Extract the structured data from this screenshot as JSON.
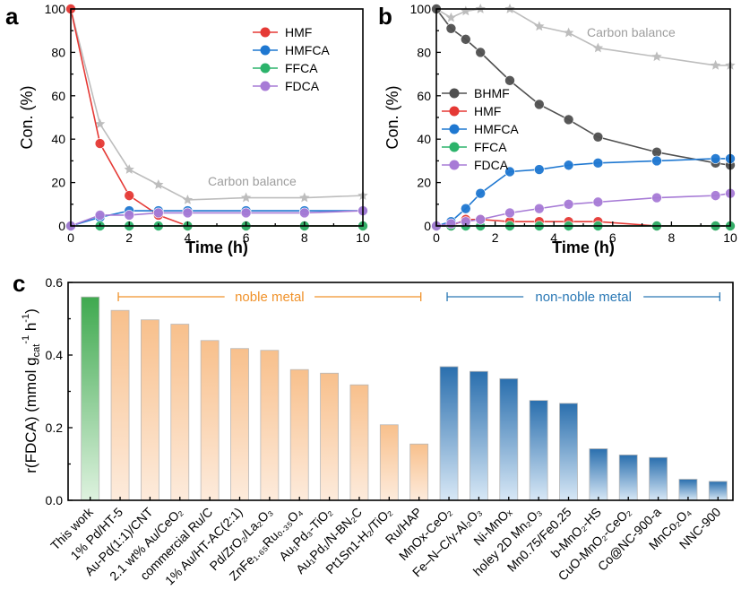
{
  "colors": {
    "HMF": "#e53935",
    "HMFCA": "#1f78d1",
    "FFCA": "#2cb36b",
    "FDCA": "#a77bd6",
    "BHMF": "#505050",
    "carbon": "#bdbdbd",
    "noble": "#f0922b",
    "nonnoble": "#2a78b5"
  },
  "chart_data": [
    {
      "panel": "a",
      "type": "line",
      "xlabel": "Time (h)",
      "ylabel": "Con. (%)",
      "xlim": [
        0,
        10
      ],
      "ylim": [
        0,
        100
      ],
      "xticks": [
        "0",
        "2",
        "4",
        "6",
        "8",
        "10"
      ],
      "yticks": [
        "0",
        "20",
        "40",
        "60",
        "80",
        "100"
      ],
      "annotation": "Carbon balance",
      "carbon_balance": {
        "x": [
          0,
          1,
          2,
          3,
          4,
          6,
          8,
          10
        ],
        "y": [
          100,
          47,
          26,
          19,
          12,
          13,
          13,
          14
        ]
      },
      "series": [
        {
          "name": "HMF",
          "key": "HMF",
          "x": [
            0,
            1,
            2,
            3,
            4,
            6,
            8,
            10
          ],
          "y": [
            100,
            38,
            14,
            5,
            0,
            0,
            0,
            0
          ]
        },
        {
          "name": "HMFCA",
          "key": "HMFCA",
          "x": [
            0,
            1,
            2,
            3,
            4,
            6,
            8,
            10
          ],
          "y": [
            0,
            4,
            7,
            7,
            7,
            7,
            7,
            7
          ]
        },
        {
          "name": "FFCA",
          "key": "FFCA",
          "x": [
            0,
            1,
            2,
            3,
            4,
            6,
            8,
            10
          ],
          "y": [
            0,
            0,
            0,
            0,
            0,
            0,
            0,
            0
          ]
        },
        {
          "name": "FDCA",
          "key": "FDCA",
          "x": [
            0,
            1,
            2,
            3,
            4,
            6,
            8,
            10
          ],
          "y": [
            0,
            5,
            5,
            6,
            6,
            6,
            6,
            7
          ]
        }
      ]
    },
    {
      "panel": "b",
      "type": "line",
      "xlabel": "Time (h)",
      "ylabel": "Con. (%)",
      "xlim": [
        0,
        10
      ],
      "ylim": [
        0,
        100
      ],
      "xticks": [
        "0",
        "2",
        "4",
        "6",
        "8",
        "10"
      ],
      "yticks": [
        "0",
        "20",
        "40",
        "60",
        "80",
        "100"
      ],
      "annotation": "Carbon balance",
      "carbon_balance": {
        "x": [
          0,
          0.5,
          1,
          1.5,
          2.5,
          3.5,
          4.5,
          5.5,
          7.5,
          9.5,
          10
        ],
        "y": [
          100,
          96,
          99,
          100,
          100,
          92,
          89,
          82,
          78,
          74,
          74
        ]
      },
      "series": [
        {
          "name": "BHMF",
          "key": "BHMF",
          "x": [
            0,
            0.5,
            1,
            1.5,
            2.5,
            3.5,
            4.5,
            5.5,
            7.5,
            9.5,
            10
          ],
          "y": [
            100,
            91,
            86,
            80,
            67,
            56,
            49,
            41,
            34,
            29,
            28
          ]
        },
        {
          "name": "HMF",
          "key": "HMF",
          "x": [
            0,
            0.5,
            1,
            1.5,
            2.5,
            3.5,
            4.5,
            5.5,
            7.5,
            9.5,
            10
          ],
          "y": [
            0,
            0,
            3,
            3,
            2,
            2,
            2,
            2,
            0,
            0,
            0
          ]
        },
        {
          "name": "HMFCA",
          "key": "HMFCA",
          "x": [
            0,
            0.5,
            1,
            1.5,
            2.5,
            3.5,
            4.5,
            5.5,
            7.5,
            9.5,
            10
          ],
          "y": [
            0,
            2,
            8,
            15,
            25,
            26,
            28,
            29,
            30,
            31,
            31
          ]
        },
        {
          "name": "FFCA",
          "key": "FFCA",
          "x": [
            0,
            0.5,
            1,
            1.5,
            2.5,
            3.5,
            4.5,
            5.5,
            7.5,
            9.5,
            10
          ],
          "y": [
            0,
            0,
            0,
            0,
            0,
            0,
            0,
            0,
            0,
            0,
            0
          ]
        },
        {
          "name": "FDCA",
          "key": "FDCA",
          "x": [
            0,
            0.5,
            1,
            1.5,
            2.5,
            3.5,
            4.5,
            5.5,
            7.5,
            9.5,
            10
          ],
          "y": [
            0,
            1,
            2,
            3,
            6,
            8,
            10,
            11,
            13,
            14,
            15
          ]
        }
      ]
    },
    {
      "panel": "c",
      "type": "bar",
      "ylabel": "r(FDCA) (mmol g",
      "ylabel_sub": "cat",
      "ylabel_sup1": "-1",
      "ylabel_mid": " h",
      "ylabel_sup2": "-1",
      "ylabel_end": ")",
      "ylim": [
        0,
        0.6
      ],
      "yticks": [
        "0.0",
        "0.2",
        "0.4",
        "0.6"
      ],
      "group_labels": {
        "noble": "noble metal",
        "nonnoble": "non-noble metal"
      },
      "categories": [
        {
          "label": "This work",
          "group": "this"
        },
        {
          "label": "1% Pd/HT-5",
          "group": "noble"
        },
        {
          "label": "Au-Pd(1:1)/CNT",
          "group": "noble"
        },
        {
          "label": "2.1 wt% Au/CeO₂",
          "group": "noble"
        },
        {
          "label": "commercial Ru/C",
          "group": "noble"
        },
        {
          "label": "1% Au/HT-AC(2:1)",
          "group": "noble"
        },
        {
          "label": "Pd/ZrO₂/La₂O₃",
          "group": "noble"
        },
        {
          "label": "ZnFe₁.₆₅Ru₀.₃₅O₄",
          "group": "noble"
        },
        {
          "label": "Au₁Pd₃-TiO₂",
          "group": "noble"
        },
        {
          "label": "Au₁Pd₁/N-BN₂C",
          "group": "noble"
        },
        {
          "label": "Pt1Sn1-H₂/TiO₂",
          "group": "noble"
        },
        {
          "label": "Ru/HAP",
          "group": "noble"
        },
        {
          "label": "MnOx-CeO₂",
          "group": "nonnoble"
        },
        {
          "label": "Fe–N–C/γ-Al₂O₃",
          "group": "nonnoble"
        },
        {
          "label": "Ni-MnOₓ",
          "group": "nonnoble"
        },
        {
          "label": "holey 2D Mn₂O₃",
          "group": "nonnoble"
        },
        {
          "label": "Mn0.75/Fe0.25",
          "group": "nonnoble"
        },
        {
          "label": "b-MnO₂-HS",
          "group": "nonnoble"
        },
        {
          "label": "CuO-MnO₂-CeO₂",
          "group": "nonnoble"
        },
        {
          "label": "Co@NC-900-a",
          "group": "nonnoble"
        },
        {
          "label": "MnCo₂O₄",
          "group": "nonnoble"
        },
        {
          "label": "NNC-900",
          "group": "nonnoble"
        }
      ],
      "values": [
        0.56,
        0.523,
        0.497,
        0.485,
        0.44,
        0.418,
        0.413,
        0.36,
        0.35,
        0.318,
        0.208,
        0.155,
        0.368,
        0.355,
        0.335,
        0.275,
        0.267,
        0.142,
        0.125,
        0.118,
        0.058,
        0.052
      ]
    }
  ],
  "panel_labels": {
    "a": "a",
    "b": "b",
    "c": "c"
  }
}
